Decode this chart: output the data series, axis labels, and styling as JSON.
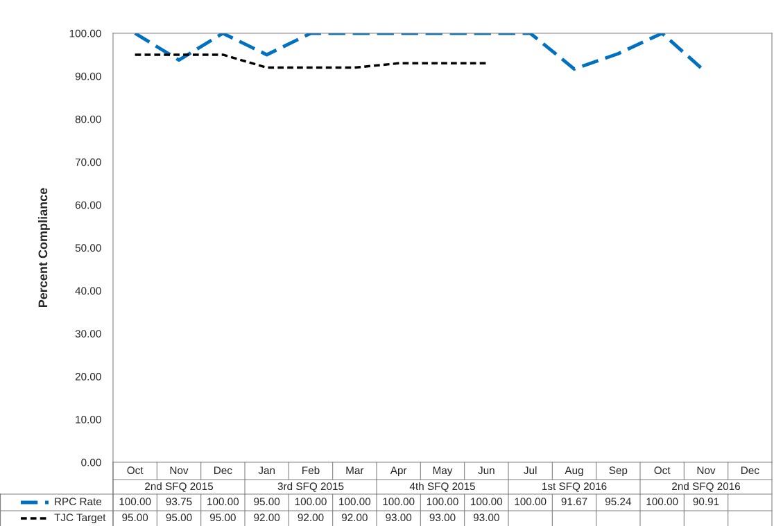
{
  "chart_data": {
    "type": "line",
    "ylabel": "Percent Compliance",
    "categories": [
      "Oct",
      "Nov",
      "Dec",
      "Jan",
      "Feb",
      "Mar",
      "Apr",
      "May",
      "Jun",
      "Jul",
      "Aug",
      "Sep",
      "Oct",
      "Nov",
      "Dec"
    ],
    "annotations": [
      "2nd SFQ 2015",
      "3rd SFQ 2015",
      "4th SFQ 2015",
      "1st SFQ 2016",
      "2nd SFQ 2016"
    ],
    "series": [
      {
        "name": "RPC Rate",
        "color": "#0070c0",
        "line_style": "dashed",
        "values": [
          100.0,
          93.75,
          100.0,
          95.0,
          100.0,
          100.0,
          100.0,
          100.0,
          100.0,
          100.0,
          91.67,
          95.24,
          100.0,
          90.91,
          null
        ],
        "value_labels": [
          "100.00",
          "93.75",
          "100.00",
          "95.00",
          "100.00",
          "100.00",
          "100.00",
          "100.00",
          "100.00",
          "100.00",
          "91.67",
          "95.24",
          "100.00",
          "90.91",
          null
        ]
      },
      {
        "name": "TJC Target",
        "color": "#000000",
        "line_style": "dotted",
        "values": [
          95.0,
          95.0,
          95.0,
          92.0,
          92.0,
          92.0,
          93.0,
          93.0,
          93.0,
          null,
          null,
          null,
          null,
          null,
          null
        ],
        "value_labels": [
          "95.00",
          "95.00",
          "95.00",
          "92.00",
          "92.00",
          "92.00",
          "93.00",
          "93.00",
          "93.00",
          null,
          null,
          null,
          null,
          null,
          null
        ]
      }
    ],
    "ylim": [
      0,
      100
    ],
    "yticks": [
      {
        "value": 0,
        "label": "0.00"
      },
      {
        "value": 10,
        "label": "10.00"
      },
      {
        "value": 20,
        "label": "20.00"
      },
      {
        "value": 30,
        "label": "30.00"
      },
      {
        "value": 40,
        "label": "40.00"
      },
      {
        "value": 50,
        "label": "50.00"
      },
      {
        "value": 60,
        "label": "60.00"
      },
      {
        "value": 70,
        "label": "70.00"
      },
      {
        "value": 80,
        "label": "80.00"
      },
      {
        "value": 90,
        "label": "90.00"
      },
      {
        "value": 100,
        "label": "100.00"
      }
    ],
    "grid": false,
    "legend": "bottom",
    "marker": "none"
  }
}
